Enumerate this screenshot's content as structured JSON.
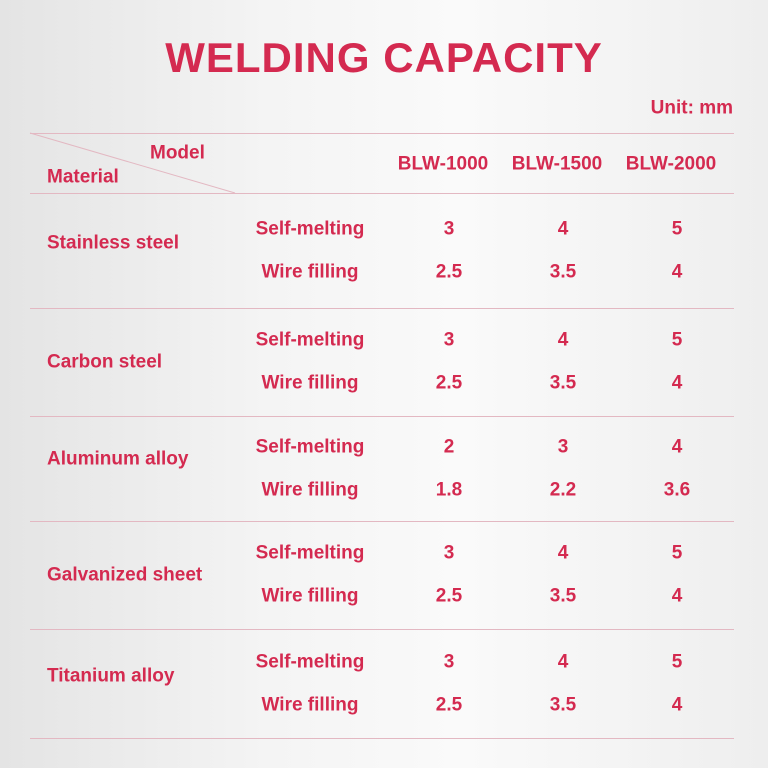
{
  "title": "WELDING CAPACITY",
  "unit": "Unit: mm",
  "header": {
    "model": "Model",
    "material": "Material",
    "models": [
      "BLW-1000",
      "BLW-1500",
      "BLW-2000"
    ]
  },
  "rows": [
    {
      "material": "Stainless steel",
      "methods": [
        {
          "name": "Self-melting",
          "values": [
            3,
            4,
            5
          ]
        },
        {
          "name": "Wire filling",
          "values": [
            2.5,
            3.5,
            4
          ]
        }
      ]
    },
    {
      "material": "Carbon steel",
      "methods": [
        {
          "name": "Self-melting",
          "values": [
            3,
            4,
            5
          ]
        },
        {
          "name": "Wire filling",
          "values": [
            2.5,
            3.5,
            4
          ]
        }
      ]
    },
    {
      "material": "Aluminum alloy",
      "methods": [
        {
          "name": "Self-melting",
          "values": [
            2,
            3,
            4
          ]
        },
        {
          "name": "Wire filling",
          "values": [
            1.8,
            2.2,
            3.6
          ]
        }
      ]
    },
    {
      "material": "Galvanized sheet",
      "methods": [
        {
          "name": "Self-melting",
          "values": [
            3,
            4,
            5
          ]
        },
        {
          "name": "Wire filling",
          "values": [
            2.5,
            3.5,
            4
          ]
        }
      ]
    },
    {
      "material": "Titanium alloy",
      "methods": [
        {
          "name": "Self-melting",
          "values": [
            3,
            4,
            5
          ]
        },
        {
          "name": "Wire filling",
          "values": [
            2.5,
            3.5,
            4
          ]
        }
      ]
    }
  ]
}
